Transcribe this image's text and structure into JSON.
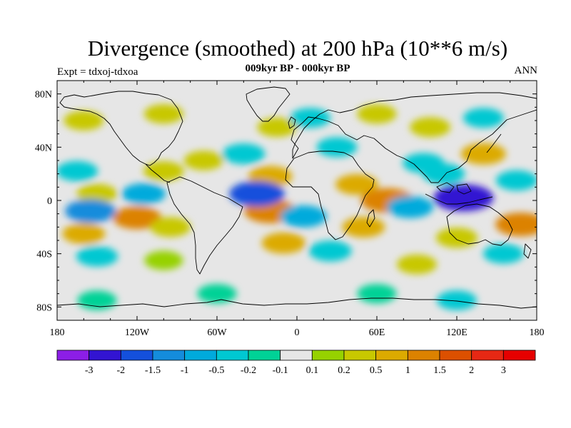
{
  "header": {
    "title": "Divergence (smoothed) at 200 hPa (10**6 m/s)",
    "subtitle": "009kyr BP - 000kyr BP",
    "left_label": "Expt = tdxoj-tdxoa",
    "right_label": "ANN"
  },
  "map": {
    "projection": "cylindrical equidistant",
    "lon_range": [
      -180,
      180
    ],
    "lat_range": [
      -90,
      90
    ],
    "x_ticks": [
      {
        "lon": -180,
        "label": "180"
      },
      {
        "lon": -120,
        "label": "120W"
      },
      {
        "lon": -60,
        "label": "60W"
      },
      {
        "lon": 0,
        "label": "0"
      },
      {
        "lon": 60,
        "label": "60E"
      },
      {
        "lon": 120,
        "label": "120E"
      },
      {
        "lon": 180,
        "label": "180"
      }
    ],
    "y_ticks": [
      {
        "lat": 80,
        "label": "80N"
      },
      {
        "lat": 40,
        "label": "40N"
      },
      {
        "lat": 0,
        "label": "0"
      },
      {
        "lat": -40,
        "label": "40S"
      },
      {
        "lat": -80,
        "label": "80S"
      }
    ],
    "minor_x_step": 20,
    "minor_y_step": 10,
    "field_cells": [
      {
        "lon": -120,
        "lat": -13,
        "level": 1.0
      },
      {
        "lon": -160,
        "lat": -25,
        "level": 0.5
      },
      {
        "lon": -95,
        "lat": -20,
        "level": 0.3
      },
      {
        "lon": -150,
        "lat": 5,
        "level": 0.3
      },
      {
        "lon": -100,
        "lat": 22,
        "level": 0.3
      },
      {
        "lon": -155,
        "lat": -8,
        "level": -1.2
      },
      {
        "lon": -115,
        "lat": 5,
        "level": -0.6
      },
      {
        "lon": -165,
        "lat": 22,
        "level": -0.4
      },
      {
        "lon": -150,
        "lat": -42,
        "level": -0.4
      },
      {
        "lon": -100,
        "lat": -45,
        "level": 0.15
      },
      {
        "lon": -40,
        "lat": 35,
        "level": -0.5
      },
      {
        "lon": -70,
        "lat": 30,
        "level": 0.2
      },
      {
        "lon": -20,
        "lat": 18,
        "level": 0.6
      },
      {
        "lon": -20,
        "lat": -8,
        "level": 1.3
      },
      {
        "lon": -30,
        "lat": 5,
        "level": -1.6
      },
      {
        "lon": 5,
        "lat": -12,
        "level": -0.8
      },
      {
        "lon": -10,
        "lat": -32,
        "level": 0.6
      },
      {
        "lon": 25,
        "lat": -38,
        "level": -0.5
      },
      {
        "lon": 45,
        "lat": 12,
        "level": 0.5
      },
      {
        "lon": 50,
        "lat": -20,
        "level": 0.5
      },
      {
        "lon": 68,
        "lat": 0,
        "level": 1.4
      },
      {
        "lon": 85,
        "lat": -5,
        "level": -0.8
      },
      {
        "lon": 95,
        "lat": 28,
        "level": -0.4
      },
      {
        "lon": 125,
        "lat": 2,
        "level": -2.6
      },
      {
        "lon": 110,
        "lat": 20,
        "level": -0.5
      },
      {
        "lon": 140,
        "lat": 35,
        "level": 0.7
      },
      {
        "lon": 165,
        "lat": 15,
        "level": -0.4
      },
      {
        "lon": 168,
        "lat": -18,
        "level": 1.2
      },
      {
        "lon": 120,
        "lat": -28,
        "level": 0.4
      },
      {
        "lon": 155,
        "lat": -40,
        "level": -0.3
      },
      {
        "lon": 90,
        "lat": -48,
        "level": 0.25
      },
      {
        "lon": 30,
        "lat": 40,
        "level": -0.3
      },
      {
        "lon": -15,
        "lat": 55,
        "level": 0.2
      },
      {
        "lon": 10,
        "lat": 62,
        "level": -0.3
      },
      {
        "lon": 100,
        "lat": 55,
        "level": 0.3
      },
      {
        "lon": 60,
        "lat": 65,
        "level": 0.2
      },
      {
        "lon": -100,
        "lat": 65,
        "level": 0.2
      },
      {
        "lon": -160,
        "lat": 60,
        "level": 0.25
      },
      {
        "lon": 140,
        "lat": 62,
        "level": -0.3
      },
      {
        "lon": -60,
        "lat": -70,
        "level": -0.2
      },
      {
        "lon": 60,
        "lat": -70,
        "level": -0.2
      },
      {
        "lon": -150,
        "lat": -75,
        "level": -0.2
      },
      {
        "lon": 120,
        "lat": -75,
        "level": -0.25
      }
    ]
  },
  "colorbar": {
    "labels": [
      "-3",
      "-2",
      "-1.5",
      "-1",
      "-0.5",
      "-0.2",
      "-0.1",
      "0.1",
      "0.2",
      "0.5",
      "1",
      "1.5",
      "2",
      "3"
    ],
    "colors": [
      "#8c1ee6",
      "#3214d2",
      "#1450dc",
      "#148cdc",
      "#00aadc",
      "#00c8d2",
      "#00d296",
      "#e6e6e6",
      "#96d200",
      "#c8c800",
      "#dcaa00",
      "#dc8200",
      "#dc5000",
      "#e62814",
      "#e60000"
    ]
  }
}
